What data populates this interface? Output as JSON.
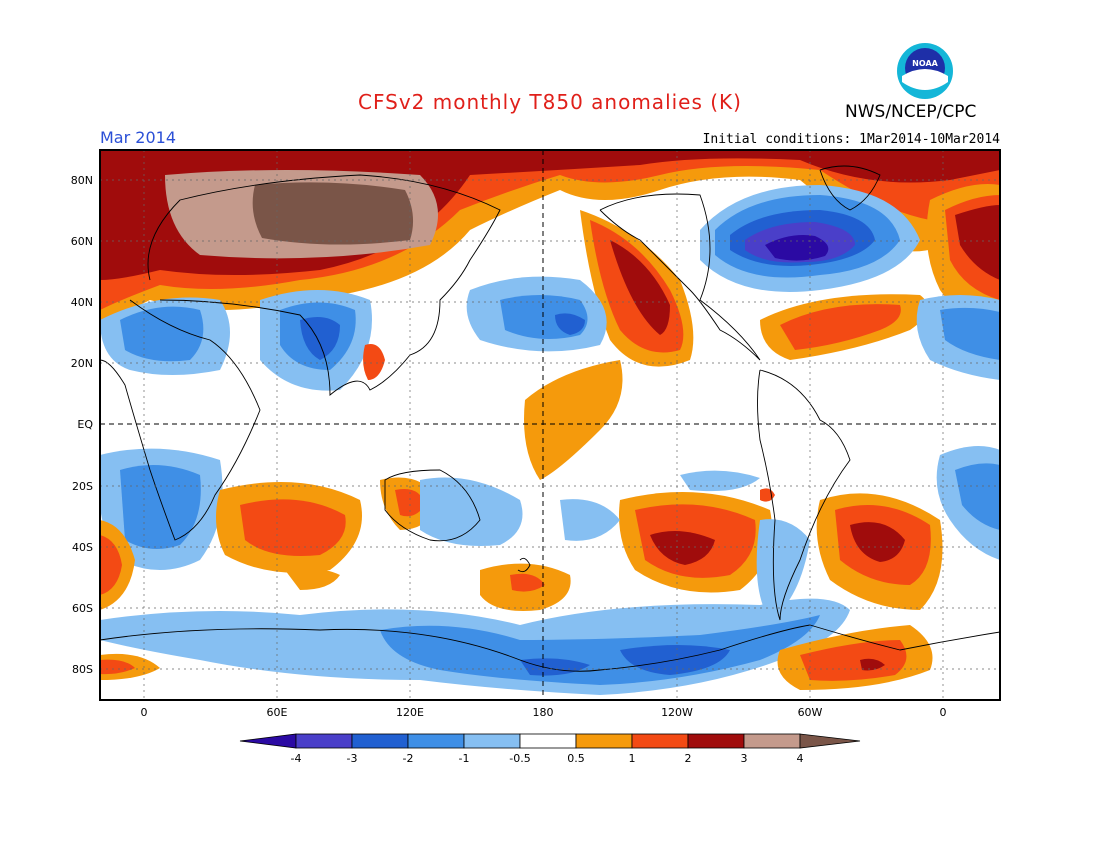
{
  "header": {
    "title": "CFSv2 monthly T850 anomalies (K)",
    "month": "Mar 2014",
    "initial_conditions": "Initial conditions: 1Mar2014-10Mar2014",
    "agency": "NWS/NCEP/CPC",
    "logo_text": "NOAA"
  },
  "map": {
    "lat_labels": [
      "80N",
      "60N",
      "40N",
      "20N",
      "EQ",
      "20S",
      "40S",
      "60S",
      "80S"
    ],
    "lon_labels": [
      "0",
      "60E",
      "120E",
      "180",
      "120W",
      "60W",
      "0"
    ]
  },
  "colorbar": {
    "tick_labels": [
      "-4",
      "-3",
      "-2",
      "-1",
      "-0.5",
      "0.5",
      "1",
      "2",
      "3",
      "4"
    ],
    "colors": [
      "#2b0aa3",
      "#4a3fc9",
      "#2160d1",
      "#3f8fe6",
      "#86bff2",
      "#ffffff",
      "#f59a0c",
      "#f34a14",
      "#a00c0c",
      "#c49a8c",
      "#7a5548"
    ]
  },
  "colors": {
    "title": "#e0201a",
    "month": "#2a4fd6",
    "ocean_bg": "#ffffff"
  }
}
